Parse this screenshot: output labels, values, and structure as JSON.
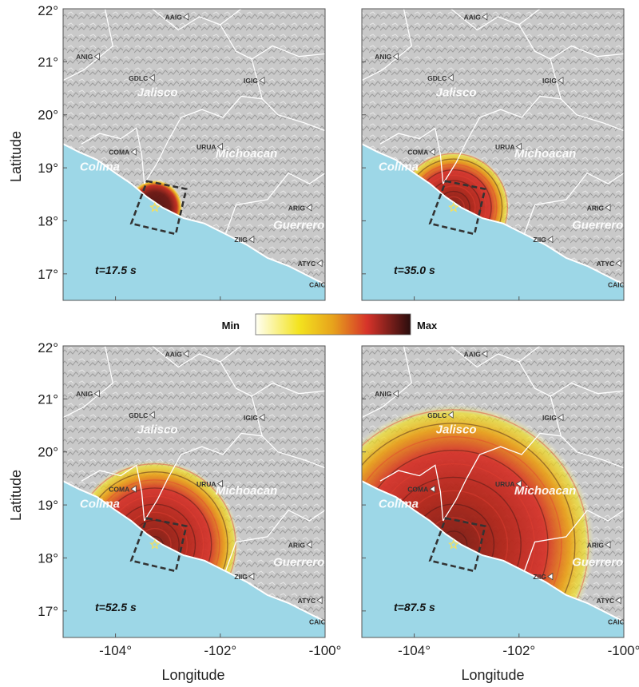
{
  "axes": {
    "ylabel": "Latitude",
    "xlabel": "Longitude",
    "lat_ticks": [
      {
        "value": 22,
        "label": "22°"
      },
      {
        "value": 21,
        "label": "21°"
      },
      {
        "value": 20,
        "label": "20°"
      },
      {
        "value": 19,
        "label": "19°"
      },
      {
        "value": 18,
        "label": "18°"
      },
      {
        "value": 17,
        "label": "17°"
      }
    ],
    "lon_ticks": [
      {
        "value": -104,
        "label": "-104°"
      },
      {
        "value": -102,
        "label": "-102°"
      },
      {
        "value": -100,
        "label": "-100°"
      }
    ],
    "lon_range": [
      -105,
      -100
    ],
    "lat_range": [
      16.5,
      22
    ]
  },
  "colorbar": {
    "min_label": "Min",
    "max_label": "Max",
    "colors": [
      "#fffff4",
      "#f3e31f",
      "#e7a21c",
      "#d6332a",
      "#2a0d0d"
    ]
  },
  "colors": {
    "ocean": "#9dd7e7",
    "land": "#c8c8c8",
    "borders": "#ffffff",
    "source_box": "#333333",
    "epicenter": "#f7e05a"
  },
  "regions": [
    {
      "name": "Jalisco",
      "lon": -103.2,
      "lat": 20.35
    },
    {
      "name": "Colima",
      "lon": -104.3,
      "lat": 18.95
    },
    {
      "name": "Michoacan",
      "lon": -101.5,
      "lat": 19.2
    },
    {
      "name": "Guerrero",
      "lon": -100.5,
      "lat": 17.85
    }
  ],
  "stations": [
    {
      "code": "AAIG",
      "lon": -102.7,
      "lat": 21.85
    },
    {
      "code": "ANIG",
      "lon": -104.4,
      "lat": 21.1
    },
    {
      "code": "GDLC",
      "lon": -103.35,
      "lat": 20.7
    },
    {
      "code": "IGIG",
      "lon": -101.25,
      "lat": 20.65
    },
    {
      "code": "COMA",
      "lon": -103.7,
      "lat": 19.3
    },
    {
      "code": "URUA",
      "lon": -102.05,
      "lat": 19.4
    },
    {
      "code": "ARIG",
      "lon": -100.35,
      "lat": 18.25
    },
    {
      "code": "ZIIG",
      "lon": -101.45,
      "lat": 17.65
    },
    {
      "code": "ATYC",
      "lon": -100.15,
      "lat": 17.2
    },
    {
      "code": "CAIG",
      "lon": -99.95,
      "lat": 16.8
    }
  ],
  "epicenter": {
    "lon": -103.25,
    "lat": 18.25
  },
  "source_box": [
    [
      -103.4,
      18.75
    ],
    [
      -102.65,
      18.6
    ],
    [
      -102.85,
      17.75
    ],
    [
      -103.7,
      17.95
    ]
  ],
  "panels": [
    {
      "time_label": "t=17.5 s",
      "front_radius_km": 60
    },
    {
      "time_label": "t=35.0 s",
      "front_radius_km": 120
    },
    {
      "time_label": "t=52.5 s",
      "front_radius_km": 180
    },
    {
      "time_label": "t=87.5 s",
      "front_radius_km": 300
    }
  ]
}
